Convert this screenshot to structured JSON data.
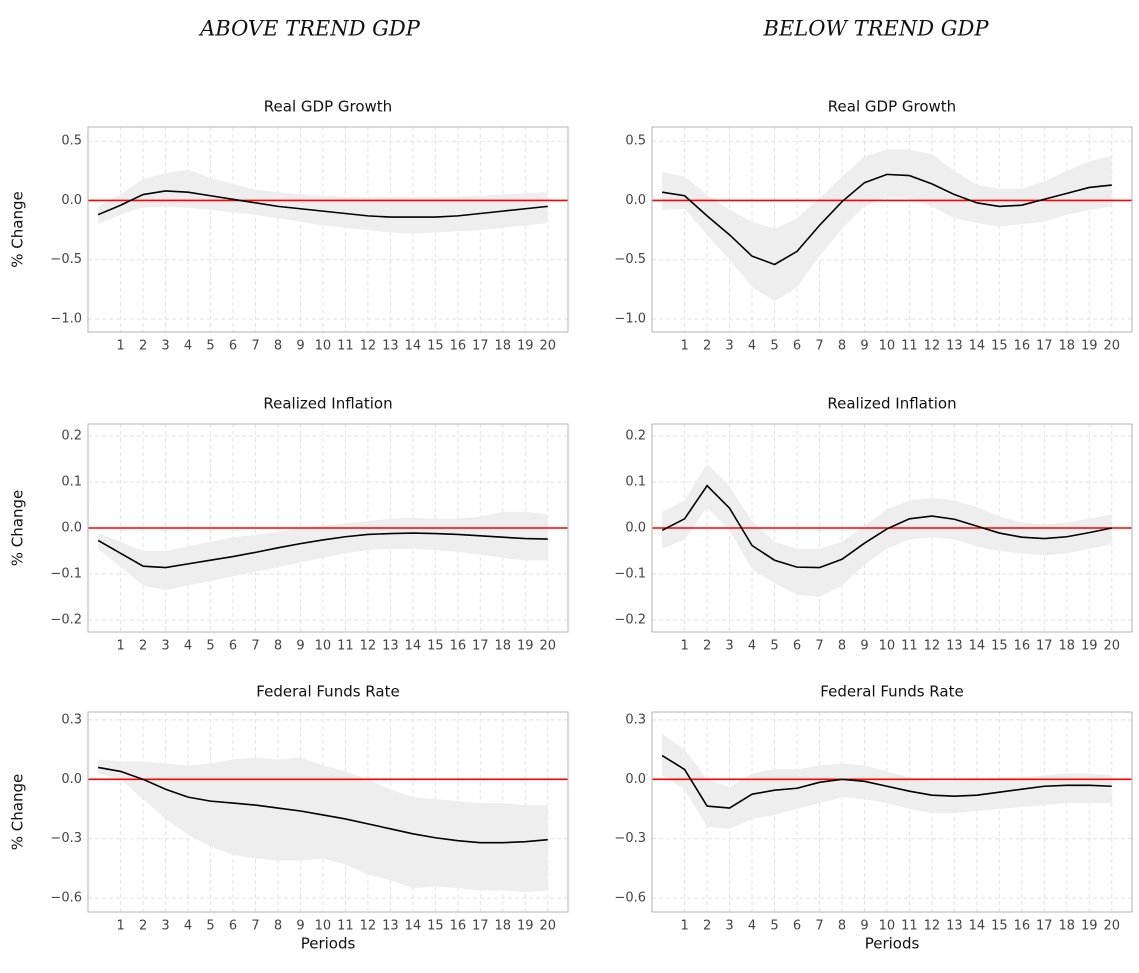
{
  "columns": [
    "ABOVE TREND GDP",
    "BELOW TREND GDP"
  ],
  "chart_data": [
    {
      "type": "line",
      "title": "Real GDP Growth",
      "ylabel": "% Change",
      "grid": true,
      "x": [
        0,
        1,
        2,
        3,
        4,
        5,
        6,
        7,
        8,
        9,
        10,
        11,
        12,
        13,
        14,
        15,
        16,
        17,
        18,
        19,
        20
      ],
      "xlim": [
        -0.45,
        20.9
      ],
      "xticks": [
        1,
        2,
        3,
        4,
        5,
        6,
        7,
        8,
        9,
        10,
        11,
        12,
        13,
        14,
        15,
        16,
        17,
        18,
        19,
        20
      ],
      "ylim": [
        -1.11,
        0.62
      ],
      "yticks": [
        {
          "value": -1,
          "label": "−1.0"
        },
        {
          "value": -0.5,
          "label": "−0.5"
        },
        {
          "value": 0,
          "label": "0.0"
        },
        {
          "value": 0.5,
          "label": "0.5"
        }
      ],
      "hline": {
        "value": 0,
        "color": "#ff0000"
      },
      "band": {
        "color": "#eeeeee",
        "upper": [
          -0.05,
          0.05,
          0.18,
          0.23,
          0.26,
          0.19,
          0.14,
          0.09,
          0.07,
          0.05,
          0.04,
          0.03,
          0.03,
          0.03,
          0.03,
          0.03,
          0.03,
          0.04,
          0.05,
          0.06,
          0.07
        ],
        "lower": [
          -0.2,
          -0.12,
          -0.06,
          -0.05,
          -0.06,
          -0.08,
          -0.1,
          -0.12,
          -0.15,
          -0.18,
          -0.21,
          -0.23,
          -0.25,
          -0.27,
          -0.28,
          -0.27,
          -0.26,
          -0.25,
          -0.23,
          -0.21,
          -0.19
        ]
      },
      "series": [
        {
          "color": "#000000",
          "values": [
            -0.12,
            -0.04,
            0.05,
            0.08,
            0.07,
            0.04,
            0.01,
            -0.02,
            -0.05,
            -0.07,
            -0.09,
            -0.11,
            -0.13,
            -0.14,
            -0.14,
            -0.14,
            -0.13,
            -0.11,
            -0.09,
            -0.07,
            -0.05
          ]
        }
      ]
    },
    {
      "type": "line",
      "title": "Real GDP Growth",
      "grid": true,
      "x": [
        0,
        1,
        2,
        3,
        4,
        5,
        6,
        7,
        8,
        9,
        10,
        11,
        12,
        13,
        14,
        15,
        16,
        17,
        18,
        19,
        20
      ],
      "xlim": [
        -0.45,
        20.9
      ],
      "xticks": [
        1,
        2,
        3,
        4,
        5,
        6,
        7,
        8,
        9,
        10,
        11,
        12,
        13,
        14,
        15,
        16,
        17,
        18,
        19,
        20
      ],
      "ylim": [
        -1.11,
        0.62
      ],
      "yticks": [
        {
          "value": -1,
          "label": "−1.0"
        },
        {
          "value": -0.5,
          "label": "−0.5"
        },
        {
          "value": 0,
          "label": "0.0"
        },
        {
          "value": 0.5,
          "label": "0.5"
        }
      ],
      "hline": {
        "value": 0,
        "color": "#ff0000"
      },
      "band": {
        "color": "#eeeeee",
        "upper": [
          0.24,
          0.2,
          0.05,
          -0.08,
          -0.18,
          -0.24,
          -0.15,
          0.02,
          0.2,
          0.37,
          0.43,
          0.43,
          0.39,
          0.25,
          0.13,
          0.1,
          0.1,
          0.16,
          0.25,
          0.33,
          0.38
        ],
        "lower": [
          -0.08,
          -0.07,
          -0.29,
          -0.5,
          -0.73,
          -0.85,
          -0.73,
          -0.47,
          -0.24,
          -0.05,
          0.03,
          0.02,
          -0.05,
          -0.15,
          -0.19,
          -0.22,
          -0.2,
          -0.18,
          -0.12,
          -0.08,
          -0.05
        ]
      },
      "series": [
        {
          "color": "#000000",
          "values": [
            0.07,
            0.04,
            -0.13,
            -0.29,
            -0.47,
            -0.54,
            -0.43,
            -0.21,
            -0.01,
            0.15,
            0.22,
            0.21,
            0.14,
            0.05,
            -0.02,
            -0.05,
            -0.04,
            0.01,
            0.06,
            0.11,
            0.13
          ]
        }
      ]
    },
    {
      "type": "line",
      "title": "Realized Inflation",
      "ylabel": "% Change",
      "grid": true,
      "x": [
        0,
        1,
        2,
        3,
        4,
        5,
        6,
        7,
        8,
        9,
        10,
        11,
        12,
        13,
        14,
        15,
        16,
        17,
        18,
        19,
        20
      ],
      "xlim": [
        -0.45,
        20.9
      ],
      "xticks": [
        1,
        2,
        3,
        4,
        5,
        6,
        7,
        8,
        9,
        10,
        11,
        12,
        13,
        14,
        15,
        16,
        17,
        18,
        19,
        20
      ],
      "ylim": [
        -0.226,
        0.226
      ],
      "yticks": [
        {
          "value": -0.2,
          "label": "−0.2"
        },
        {
          "value": -0.1,
          "label": "−0.1"
        },
        {
          "value": 0,
          "label": "0.0"
        },
        0.1,
        0.2
      ],
      "hline": {
        "value": 0,
        "color": "#ff0000"
      },
      "band": {
        "color": "#eeeeee",
        "upper": [
          -0.01,
          -0.03,
          -0.05,
          -0.05,
          -0.04,
          -0.03,
          -0.02,
          -0.015,
          -0.008,
          0,
          0.005,
          0.01,
          0.015,
          0.02,
          0.022,
          0.02,
          0.02,
          0.025,
          0.035,
          0.035,
          0.03
        ],
        "lower": [
          -0.045,
          -0.085,
          -0.125,
          -0.135,
          -0.125,
          -0.115,
          -0.105,
          -0.095,
          -0.085,
          -0.075,
          -0.065,
          -0.055,
          -0.048,
          -0.045,
          -0.045,
          -0.048,
          -0.052,
          -0.058,
          -0.065,
          -0.07,
          -0.07
        ]
      },
      "series": [
        {
          "color": "#000000",
          "values": [
            -0.027,
            -0.055,
            -0.083,
            -0.086,
            -0.078,
            -0.07,
            -0.062,
            -0.053,
            -0.043,
            -0.034,
            -0.026,
            -0.019,
            -0.014,
            -0.012,
            -0.011,
            -0.012,
            -0.014,
            -0.017,
            -0.02,
            -0.023,
            -0.024
          ]
        }
      ]
    },
    {
      "type": "line",
      "title": "Realized Inflation",
      "grid": true,
      "x": [
        0,
        1,
        2,
        3,
        4,
        5,
        6,
        7,
        8,
        9,
        10,
        11,
        12,
        13,
        14,
        15,
        16,
        17,
        18,
        19,
        20
      ],
      "xlim": [
        -0.45,
        20.9
      ],
      "xticks": [
        1,
        2,
        3,
        4,
        5,
        6,
        7,
        8,
        9,
        10,
        11,
        12,
        13,
        14,
        15,
        16,
        17,
        18,
        19,
        20
      ],
      "ylim": [
        -0.226,
        0.226
      ],
      "yticks": [
        {
          "value": -0.2,
          "label": "−0.2"
        },
        {
          "value": -0.1,
          "label": "−0.1"
        },
        {
          "value": 0,
          "label": "0.0"
        },
        0.1,
        0.2
      ],
      "hline": {
        "value": 0,
        "color": "#ff0000"
      },
      "band": {
        "color": "#eeeeee",
        "upper": [
          0.035,
          0.06,
          0.14,
          0.09,
          0.015,
          -0.03,
          -0.045,
          -0.045,
          -0.03,
          0.005,
          0.04,
          0.06,
          0.065,
          0.06,
          0.045,
          0.025,
          0.012,
          0.008,
          0.012,
          0.02,
          0.03
        ],
        "lower": [
          -0.045,
          -0.025,
          0.045,
          -0.005,
          -0.09,
          -0.12,
          -0.145,
          -0.15,
          -0.125,
          -0.08,
          -0.045,
          -0.025,
          -0.02,
          -0.025,
          -0.04,
          -0.05,
          -0.055,
          -0.06,
          -0.055,
          -0.045,
          -0.035
        ]
      },
      "series": [
        {
          "color": "#000000",
          "values": [
            -0.005,
            0.02,
            0.092,
            0.043,
            -0.038,
            -0.07,
            -0.085,
            -0.086,
            -0.068,
            -0.033,
            -0.002,
            0.02,
            0.026,
            0.019,
            0.004,
            -0.011,
            -0.02,
            -0.023,
            -0.019,
            -0.01,
            0.0
          ]
        }
      ]
    },
    {
      "type": "line",
      "title": "Federal Funds Rate",
      "ylabel": "% Change",
      "xlabel": "Periods",
      "grid": true,
      "x": [
        0,
        1,
        2,
        3,
        4,
        5,
        6,
        7,
        8,
        9,
        10,
        11,
        12,
        13,
        14,
        15,
        16,
        17,
        18,
        19,
        20
      ],
      "xlim": [
        -0.45,
        20.9
      ],
      "xticks": [
        1,
        2,
        3,
        4,
        5,
        6,
        7,
        8,
        9,
        10,
        11,
        12,
        13,
        14,
        15,
        16,
        17,
        18,
        19,
        20
      ],
      "ylim": [
        -0.67,
        0.34
      ],
      "yticks": [
        {
          "value": -0.6,
          "label": "−0.6"
        },
        {
          "value": -0.3,
          "label": "−0.3"
        },
        {
          "value": 0,
          "label": "0.0"
        },
        0.3
      ],
      "hline": {
        "value": 0,
        "color": "#ff0000"
      },
      "band": {
        "color": "#eeeeee",
        "upper": [
          0.1,
          0.09,
          0.09,
          0.08,
          0.07,
          0.08,
          0.1,
          0.11,
          0.1,
          0.11,
          0.07,
          0.04,
          0.0,
          -0.05,
          -0.09,
          -0.1,
          -0.11,
          -0.12,
          -0.12,
          -0.13,
          -0.13
        ],
        "lower": [
          0.03,
          0.0,
          -0.1,
          -0.2,
          -0.28,
          -0.34,
          -0.38,
          -0.4,
          -0.41,
          -0.41,
          -0.4,
          -0.43,
          -0.48,
          -0.51,
          -0.55,
          -0.54,
          -0.55,
          -0.56,
          -0.56,
          -0.57,
          -0.56
        ]
      },
      "series": [
        {
          "color": "#000000",
          "values": [
            0.06,
            0.04,
            0.0,
            -0.05,
            -0.09,
            -0.11,
            -0.12,
            -0.13,
            -0.145,
            -0.16,
            -0.18,
            -0.2,
            -0.225,
            -0.25,
            -0.275,
            -0.295,
            -0.31,
            -0.32,
            -0.32,
            -0.315,
            -0.305
          ]
        }
      ]
    },
    {
      "type": "line",
      "title": "Federal Funds Rate",
      "xlabel": "Periods",
      "grid": true,
      "x": [
        0,
        1,
        2,
        3,
        4,
        5,
        6,
        7,
        8,
        9,
        10,
        11,
        12,
        13,
        14,
        15,
        16,
        17,
        18,
        19,
        20
      ],
      "xlim": [
        -0.45,
        20.9
      ],
      "xticks": [
        1,
        2,
        3,
        4,
        5,
        6,
        7,
        8,
        9,
        10,
        11,
        12,
        13,
        14,
        15,
        16,
        17,
        18,
        19,
        20
      ],
      "ylim": [
        -0.67,
        0.34
      ],
      "yticks": [
        {
          "value": -0.6,
          "label": "−0.6"
        },
        {
          "value": -0.3,
          "label": "−0.3"
        },
        {
          "value": 0,
          "label": "0.0"
        },
        0.3
      ],
      "hline": {
        "value": 0,
        "color": "#ff0000"
      },
      "band": {
        "color": "#eeeeee",
        "upper": [
          0.23,
          0.15,
          0.0,
          -0.04,
          0.03,
          0.05,
          0.05,
          0.07,
          0.08,
          0.07,
          0.04,
          0.01,
          -0.01,
          -0.01,
          0.0,
          0.01,
          0.01,
          0.02,
          0.03,
          0.03,
          0.02
        ],
        "lower": [
          0.02,
          -0.05,
          -0.24,
          -0.25,
          -0.2,
          -0.18,
          -0.15,
          -0.12,
          -0.09,
          -0.1,
          -0.12,
          -0.15,
          -0.17,
          -0.17,
          -0.16,
          -0.15,
          -0.14,
          -0.13,
          -0.12,
          -0.12,
          -0.12
        ]
      },
      "series": [
        {
          "color": "#000000",
          "values": [
            0.12,
            0.05,
            -0.135,
            -0.145,
            -0.075,
            -0.055,
            -0.045,
            -0.015,
            0.0,
            -0.01,
            -0.035,
            -0.06,
            -0.08,
            -0.085,
            -0.08,
            -0.065,
            -0.05,
            -0.035,
            -0.03,
            -0.03,
            -0.035
          ]
        }
      ]
    }
  ]
}
